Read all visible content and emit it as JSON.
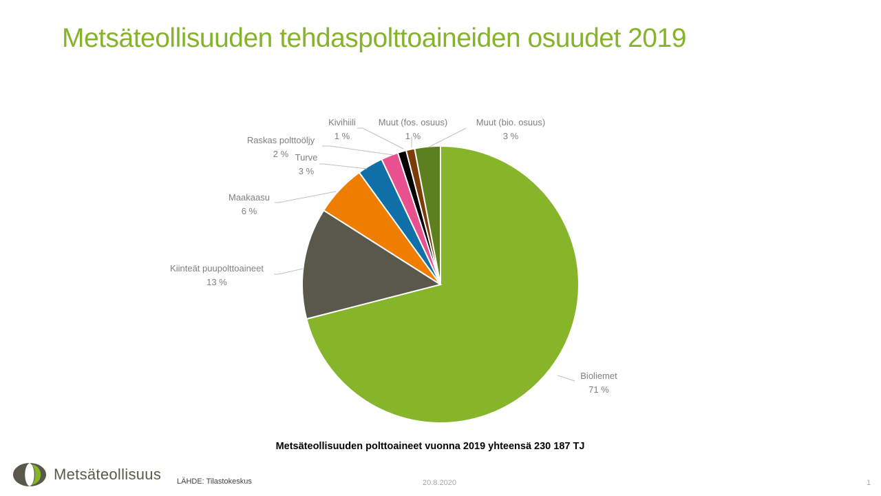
{
  "slide": {
    "title": "Metsäteollisuuden tehdaspolttoaineiden osuudet 2019",
    "title_color": "#86b32b",
    "caption": "Metsäteollisuuden polttoaineet vuonna 2019 yhteensä 230 187 TJ",
    "logo_text": "Metsäteollisuus",
    "source": "LÄHDE:  Tilastokeskus",
    "date": "20.8.2020",
    "page_number": "1"
  },
  "chart_data": {
    "type": "pie",
    "title": "",
    "start_angle_deg": 0,
    "direction": "clockwise",
    "slices": [
      {
        "name": "Bioliemet",
        "value": 71,
        "label": "71 %",
        "color": "#86b42a"
      },
      {
        "name": "Kiinteät puupolttoaineet",
        "value": 13,
        "label": "13 %",
        "color": "#59584b"
      },
      {
        "name": "Maakaasu",
        "value": 6,
        "label": "6 %",
        "color": "#ef7d00"
      },
      {
        "name": "Turve",
        "value": 3,
        "label": "3 %",
        "color": "#0f6fa6"
      },
      {
        "name": "Raskas polttoöljy",
        "value": 2,
        "label": "2 %",
        "color": "#e8518f"
      },
      {
        "name": "Kivihiili",
        "value": 1,
        "label": "1 %",
        "color": "#000000"
      },
      {
        "name": "Muut (fos. osuus)",
        "value": 1,
        "label": "1 %",
        "color": "#7c3c0a"
      },
      {
        "name": "Muut (bio. osuus)",
        "value": 3,
        "label": "3 %",
        "color": "#5e7f1e"
      }
    ]
  }
}
